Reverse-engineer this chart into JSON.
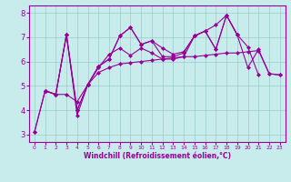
{
  "xlabel": "Windchill (Refroidissement éolien,°C)",
  "background_color": "#c8ecec",
  "line_color": "#990099",
  "grid_color": "#99cccc",
  "xlim": [
    -0.5,
    23.5
  ],
  "ylim": [
    2.7,
    8.3
  ],
  "xticks": [
    0,
    1,
    2,
    3,
    4,
    5,
    6,
    7,
    8,
    9,
    10,
    11,
    12,
    13,
    14,
    15,
    16,
    17,
    18,
    19,
    20,
    21,
    22,
    23
  ],
  "yticks": [
    3,
    4,
    5,
    6,
    7,
    8
  ],
  "line1_x": [
    0,
    1,
    2,
    3,
    4,
    5,
    6,
    7,
    8,
    9,
    10,
    11,
    12,
    13,
    14,
    15,
    16,
    17,
    18,
    19,
    20,
    21
  ],
  "line1_y": [
    3.1,
    4.8,
    4.65,
    7.1,
    3.8,
    5.05,
    5.8,
    6.1,
    7.05,
    7.4,
    6.7,
    6.85,
    6.2,
    6.2,
    6.35,
    7.05,
    7.25,
    7.5,
    7.9,
    7.1,
    6.6,
    5.45
  ],
  "line2_x": [
    0,
    1,
    2,
    3,
    4,
    5,
    6,
    7,
    8,
    9,
    10,
    11,
    12,
    13,
    14,
    15,
    16,
    17,
    18,
    19,
    20,
    21,
    22,
    23
  ],
  "line2_y": [
    3.1,
    4.8,
    4.65,
    4.65,
    4.35,
    5.05,
    5.55,
    5.75,
    5.9,
    5.95,
    6.0,
    6.05,
    6.1,
    6.15,
    6.2,
    6.2,
    6.25,
    6.3,
    6.35,
    6.35,
    6.4,
    6.45,
    5.5,
    5.45
  ],
  "line3_x": [
    1,
    2,
    3,
    4,
    5,
    6,
    7,
    8,
    9,
    10,
    11,
    12,
    13,
    14,
    15,
    16,
    17,
    18,
    19,
    20,
    21,
    22,
    23
  ],
  "line3_y": [
    4.8,
    4.65,
    7.1,
    4.0,
    5.05,
    5.75,
    6.3,
    6.55,
    6.25,
    6.55,
    6.35,
    6.1,
    6.1,
    6.2,
    7.05,
    7.25,
    6.5,
    7.9,
    7.1,
    5.75,
    6.5,
    5.5,
    5.45
  ],
  "line4_x": [
    1,
    2,
    3,
    4,
    5,
    6,
    7,
    8,
    9,
    10,
    11,
    12,
    13,
    14,
    15,
    16,
    17,
    18,
    19
  ],
  "line4_y": [
    4.8,
    4.65,
    7.1,
    4.0,
    5.05,
    5.8,
    6.1,
    7.05,
    7.4,
    6.7,
    6.85,
    6.55,
    6.3,
    6.4,
    7.05,
    7.25,
    6.5,
    7.9,
    7.1
  ],
  "markersize": 2.5
}
